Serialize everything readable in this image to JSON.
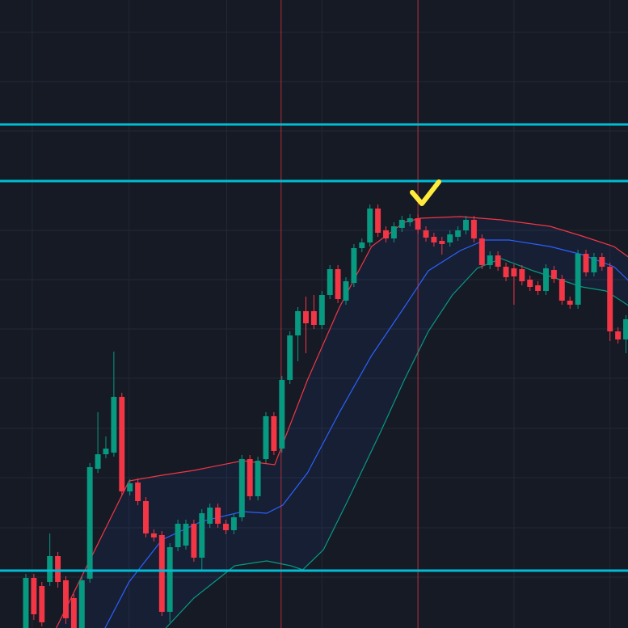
{
  "chart_data": {
    "type": "candlestick",
    "background": "#161a25",
    "up_color": "#089981",
    "down_color": "#f23645",
    "grid": true,
    "grid_color": "#232836",
    "xlim": [
      -3.23,
      75.25
    ],
    "ylim": [
      0,
      777
    ],
    "xticks": [
      0.8,
      12.9,
      25.1,
      37.0,
      49.0,
      61.0,
      73.0
    ],
    "yticks": [
      737,
      676,
      615,
      553,
      492,
      431,
      370,
      309,
      247,
      186,
      124,
      63
    ],
    "open": [
      0,
      62,
      52,
      57,
      89,
      59,
      37,
      0,
      61,
      197,
      215,
      217,
      286,
      169,
      180,
      157,
      117,
      115,
      20,
      100,
      102,
      129,
      87,
      129,
      149,
      129,
      121,
      137,
      209,
      163,
      209,
      262,
      222,
      307,
      362,
      392,
      392,
      375,
      412,
      444,
      405,
      427,
      470,
      477,
      519,
      492,
      482,
      495,
      502,
      507,
      492,
      484,
      479,
      477,
      484,
      492,
      505,
      482,
      449,
      461,
      447,
      445,
      444,
      431,
      424,
      417,
      443,
      432,
      405,
      400,
      463,
      440,
      459,
      447,
      367,
      357
    ],
    "high": [
      67,
      67,
      57,
      117,
      94,
      64,
      42,
      64,
      204,
      267,
      237,
      342,
      291,
      184,
      185,
      162,
      122,
      120,
      105,
      134,
      134,
      134,
      147,
      154,
      154,
      134,
      142,
      214,
      214,
      212,
      267,
      267,
      312,
      367,
      397,
      410,
      412,
      417,
      449,
      449,
      434,
      475,
      482,
      524,
      524,
      497,
      502,
      510,
      512,
      512,
      497,
      489,
      484,
      492,
      497,
      510,
      510,
      487,
      466,
      466,
      452,
      450,
      449,
      436,
      429,
      450,
      448,
      437,
      410,
      468,
      468,
      464,
      464,
      452,
      372,
      387
    ],
    "low": [
      0,
      10,
      2,
      52,
      50,
      5,
      0,
      0,
      56,
      192,
      210,
      212,
      164,
      164,
      152,
      112,
      107,
      15,
      7,
      95,
      97,
      82,
      70,
      124,
      124,
      116,
      116,
      132,
      158,
      158,
      204,
      214,
      217,
      302,
      330,
      340,
      370,
      370,
      407,
      402,
      400,
      422,
      465,
      472,
      484,
      477,
      477,
      490,
      497,
      488,
      478,
      472,
      462,
      472,
      479,
      487,
      477,
      444,
      444,
      442,
      429,
      400,
      424,
      417,
      412,
      412,
      427,
      400,
      395,
      395,
      435,
      435,
      442,
      355,
      352,
      340
    ],
    "close": [
      62,
      17,
      7,
      89,
      57,
      12,
      0,
      59,
      199,
      215,
      222,
      286,
      169,
      179,
      157,
      117,
      112,
      20,
      100,
      129,
      129,
      87,
      142,
      149,
      129,
      121,
      137,
      209,
      163,
      207,
      262,
      219,
      307,
      362,
      392,
      377,
      375,
      412,
      444,
      407,
      429,
      470,
      477,
      519,
      489,
      482,
      497,
      505,
      507,
      493,
      483,
      477,
      475,
      487,
      492,
      505,
      482,
      449,
      461,
      447,
      434,
      435,
      429,
      422,
      417,
      445,
      432,
      405,
      400,
      463,
      440,
      459,
      447,
      367,
      357,
      382
    ],
    "band_fill": "rgba(41,98,255,0.07)",
    "series": [
      {
        "color": "#f23645",
        "x": [
          3.8,
          9.9,
          12.9,
          17.0,
          21.0,
          27.1,
          31.1,
          35.2,
          39.2,
          43.2,
          47.3,
          49.3,
          54.3,
          59.4,
          65.5,
          69.5,
          73.5,
          75.3
        ],
        "values": [
          0,
          122,
          182,
          189,
          195,
          207,
          202,
          307,
          397,
          472,
          502,
          507,
          509,
          505,
          497,
          485,
          472,
          459
        ]
      },
      {
        "color": "#2962ff",
        "x": [
          9.9,
          12.9,
          17.0,
          22.0,
          27.1,
          30.1,
          32.1,
          35.2,
          39.2,
          43.2,
          47.3,
          50.3,
          54.3,
          57.4,
          60.4,
          65.5,
          69.5,
          73.5,
          75.3
        ],
        "values": [
          0,
          57,
          109,
          132,
          144,
          142,
          152,
          192,
          267,
          337,
          397,
          442,
          467,
          480,
          480,
          472,
          462,
          447,
          430
        ]
      },
      {
        "color": "#089981",
        "x": [
          17.5,
          21.0,
          26.1,
          30.1,
          33.1,
          34.6,
          37.2,
          40.2,
          44.3,
          47.3,
          50.3,
          53.3,
          56.4,
          59.4,
          63.4,
          69.5,
          72.5,
          75.3
        ],
        "values": [
          0,
          37,
          77,
          83,
          77,
          72,
          97,
          157,
          242,
          307,
          367,
          412,
          445,
          457,
          442,
          422,
          417,
          399
        ]
      }
    ],
    "levels": {
      "color": "#00bcd4",
      "values": [
        623,
        553,
        71
      ]
    },
    "vlines": {
      "color": "#f23645",
      "values": [
        31.9,
        49.0
      ]
    }
  }
}
